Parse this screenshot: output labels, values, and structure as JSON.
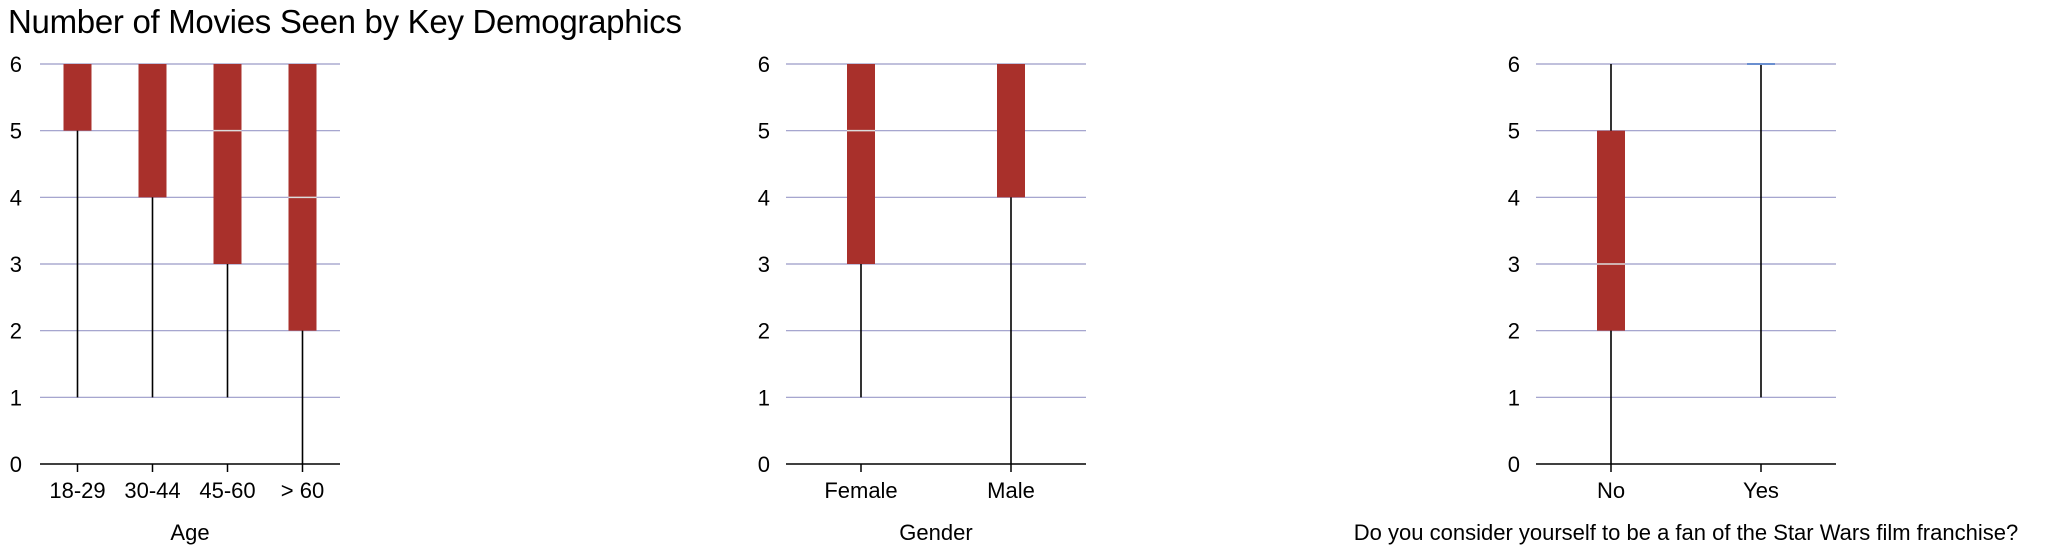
{
  "title": "Number of Movies Seen by Key Demographics",
  "colors": {
    "box": "#a9302b",
    "grid": "#9a9ac8",
    "whisker": "#000000",
    "median": "#dcdcdc"
  },
  "chart_data": [
    {
      "type": "boxplot",
      "xlabel": "Age",
      "ylim": [
        0,
        6
      ],
      "yticks": [
        "0",
        "1",
        "2",
        "3",
        "4",
        "5",
        "6"
      ],
      "grid": true,
      "categories": [
        "18-29",
        "30-44",
        "45-60",
        "> 60"
      ],
      "boxes": [
        {
          "min": 1,
          "q1": 5,
          "median": 6,
          "q3": 6,
          "max": 6
        },
        {
          "min": 1,
          "q1": 4,
          "median": 6,
          "q3": 6,
          "max": 6
        },
        {
          "min": 1,
          "q1": 3,
          "median": 5,
          "q3": 6,
          "max": 6
        },
        {
          "min": 0,
          "q1": 2,
          "median": 4,
          "q3": 6,
          "max": 6
        }
      ]
    },
    {
      "type": "boxplot",
      "xlabel": "Gender",
      "ylim": [
        0,
        6
      ],
      "yticks": [
        "0",
        "1",
        "2",
        "3",
        "4",
        "5",
        "6"
      ],
      "grid": true,
      "categories": [
        "Female",
        "Male"
      ],
      "boxes": [
        {
          "min": 1,
          "q1": 3,
          "median": 5,
          "q3": 6,
          "max": 6
        },
        {
          "min": 0,
          "q1": 4,
          "median": 6,
          "q3": 6,
          "max": 6
        }
      ]
    },
    {
      "type": "boxplot",
      "xlabel": "Do you consider yourself to be a fan of the Star Wars film franchise?",
      "ylim": [
        0,
        6
      ],
      "yticks": [
        "0",
        "1",
        "2",
        "3",
        "4",
        "5",
        "6"
      ],
      "grid": true,
      "categories": [
        "No",
        "Yes"
      ],
      "boxes": [
        {
          "min": 0,
          "q1": 2,
          "median": 3,
          "q3": 5,
          "max": 6
        },
        {
          "min": 1,
          "q1": 6,
          "median": 6,
          "q3": 6,
          "max": 6
        }
      ]
    }
  ]
}
